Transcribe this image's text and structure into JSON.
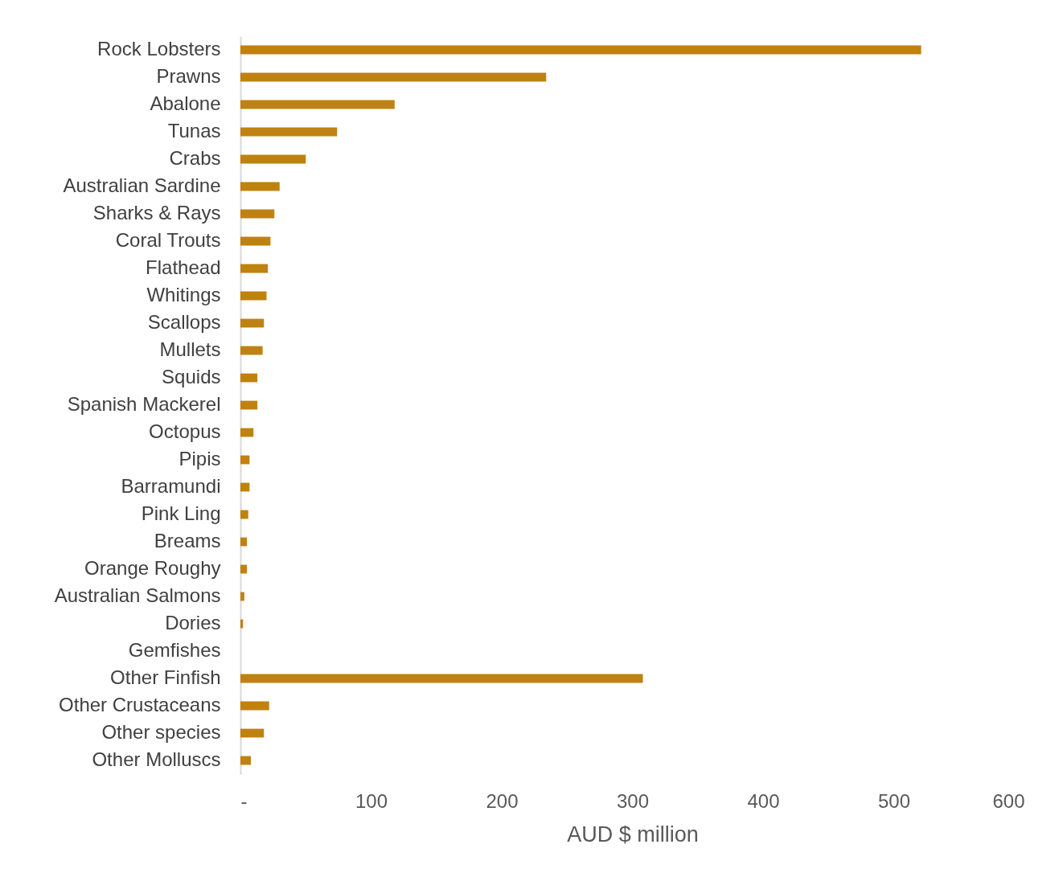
{
  "chart_data": {
    "type": "bar",
    "orientation": "horizontal",
    "xlabel": "AUD $ million",
    "categories": [
      "Rock Lobsters",
      "Prawns",
      "Abalone",
      "Tunas",
      "Crabs",
      "Australian Sardine",
      "Sharks & Rays",
      "Coral Trouts",
      "Flathead",
      "Whitings",
      "Scallops",
      "Mullets",
      "Squids",
      "Spanish Mackerel",
      "Octopus",
      "Pipis",
      "Barramundi",
      "Pink Ling",
      "Breams",
      "Orange Roughy",
      "Australian Salmons",
      "Dories",
      "Gemfishes",
      "Other Finfish",
      "Other Crustaceans",
      "Other species",
      "Other Molluscs"
    ],
    "values": [
      521,
      234,
      118,
      74,
      50,
      30,
      26,
      23,
      21,
      20,
      18,
      17,
      13,
      13,
      10,
      7,
      7,
      6,
      5,
      5,
      3,
      2,
      null,
      308,
      22,
      18,
      8
    ],
    "color": "#bf8211",
    "xlim": [
      0,
      600
    ],
    "xticks": [
      {
        "value": 0,
        "label": "-"
      },
      100,
      200,
      300,
      400,
      500,
      600
    ]
  }
}
